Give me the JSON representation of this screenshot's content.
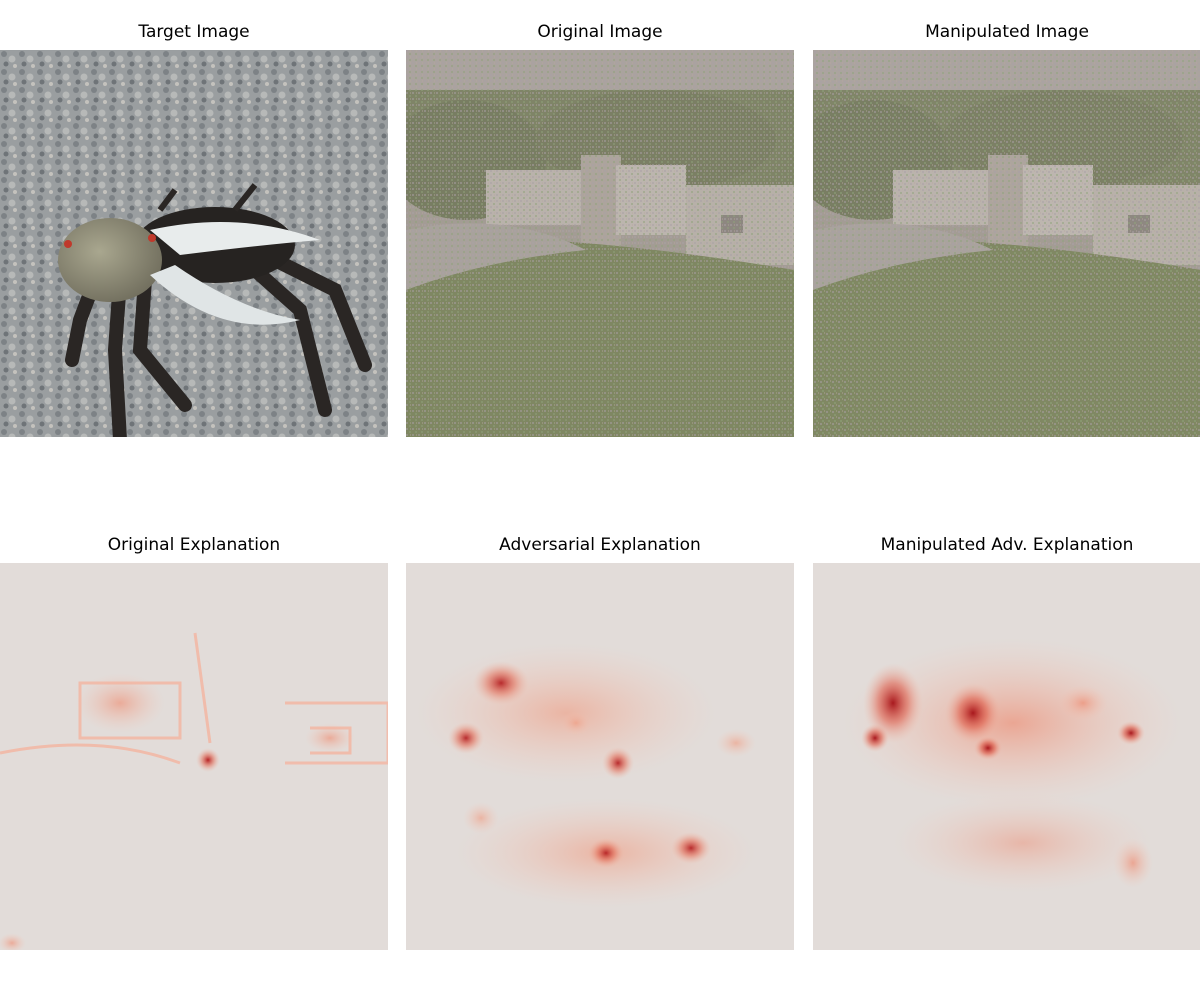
{
  "panels": [
    {
      "title": "Target Image"
    },
    {
      "title": "Original Image"
    },
    {
      "title": "Manipulated Image"
    },
    {
      "title": "Original Explanation"
    },
    {
      "title": "Adversarial Explanation"
    },
    {
      "title": "Manipulated Adv. Explanation"
    }
  ],
  "colors": {
    "background": "#ffffff",
    "heatmap_low": "#e2dcd9",
    "heatmap_high": "#b2181b"
  }
}
